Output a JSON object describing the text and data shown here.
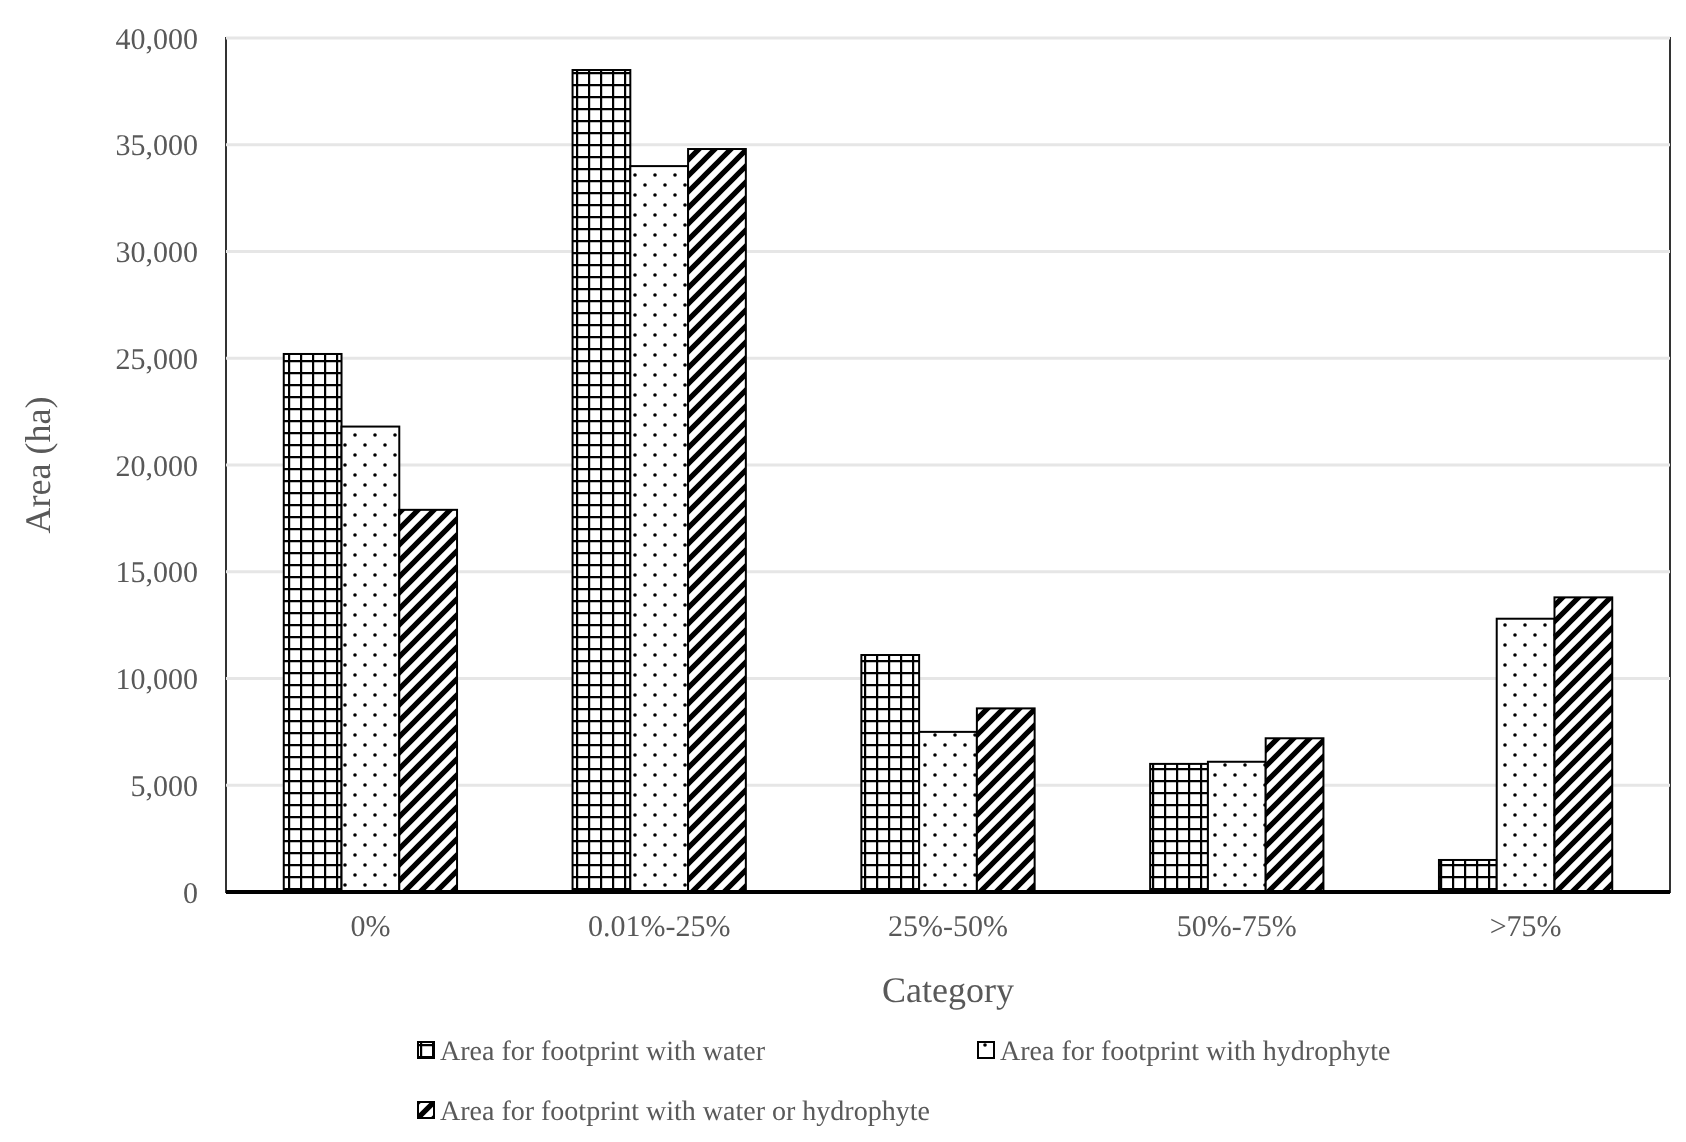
{
  "chart_data": {
    "type": "bar",
    "xlabel": "Category",
    "ylabel": "Area (ha)",
    "categories": [
      "0%",
      "0.01%-25%",
      "25%-50%",
      "50%-75%",
      ">75%"
    ],
    "series": [
      {
        "name": "Area for footprint with water",
        "color": "#000000",
        "values": [
          25200,
          38500,
          11100,
          6000,
          1500
        ]
      },
      {
        "name": "Area for footprint with hydrophyte",
        "color": "#000000",
        "values": [
          21800,
          34000,
          7500,
          6100,
          12800
        ]
      },
      {
        "name": "Area for footprint with water or hydrophyte",
        "color": "#000000",
        "values": [
          17900,
          34800,
          8600,
          7200,
          13800
        ]
      }
    ],
    "ylim": [
      0,
      40000
    ],
    "yticks": [
      {
        "value": 0,
        "label": "0"
      },
      {
        "value": 5000,
        "label": "5,000"
      },
      {
        "value": 10000,
        "label": "10,000"
      },
      {
        "value": 15000,
        "label": "15,000"
      },
      {
        "value": 20000,
        "label": "20,000"
      },
      {
        "value": 25000,
        "label": "25,000"
      },
      {
        "value": 30000,
        "label": "30,000"
      },
      {
        "value": 35000,
        "label": "35,000"
      },
      {
        "value": 40000,
        "label": "40,000"
      }
    ],
    "grid": "y",
    "legend": "bottom"
  }
}
